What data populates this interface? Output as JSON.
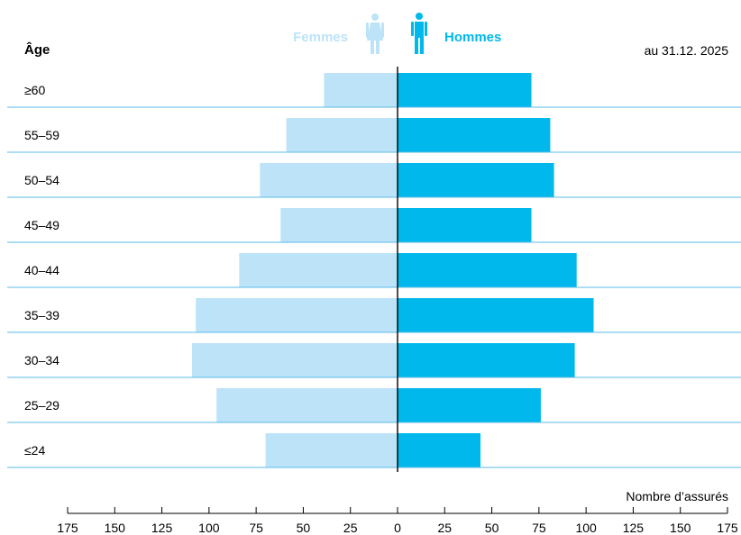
{
  "chart_data": {
    "type": "bar",
    "orientation": "horizontal",
    "layout": "population-pyramid",
    "age_header": "Âge",
    "date_note": "au 31.12. 2025",
    "xlabel": "Nombre d’assurés",
    "categories": [
      "≥60",
      "55–59",
      "50–54",
      "45–49",
      "40–44",
      "35–39",
      "30–34",
      "25–29",
      "≤24"
    ],
    "series": [
      {
        "name": "Femmes",
        "side": "left",
        "color": "#bde3f8",
        "values": [
          39,
          59,
          73,
          62,
          84,
          107,
          109,
          96,
          70
        ]
      },
      {
        "name": "Hommes",
        "side": "right",
        "color": "#00b8ec",
        "values": [
          71,
          81,
          83,
          71,
          95,
          104,
          94,
          76,
          44
        ]
      }
    ],
    "xlim": [
      -175,
      175
    ],
    "ticks": [
      -175,
      -150,
      -125,
      -100,
      -75,
      -50,
      -25,
      0,
      25,
      50,
      75,
      100,
      125,
      150,
      175
    ],
    "tick_labels": [
      "175",
      "150",
      "125",
      "100",
      "75",
      "50",
      "25",
      "0",
      "25",
      "50",
      "75",
      "100",
      "125",
      "150",
      "175"
    ],
    "legend_placement": "top-center",
    "separator_color": "#5bbbe6"
  }
}
